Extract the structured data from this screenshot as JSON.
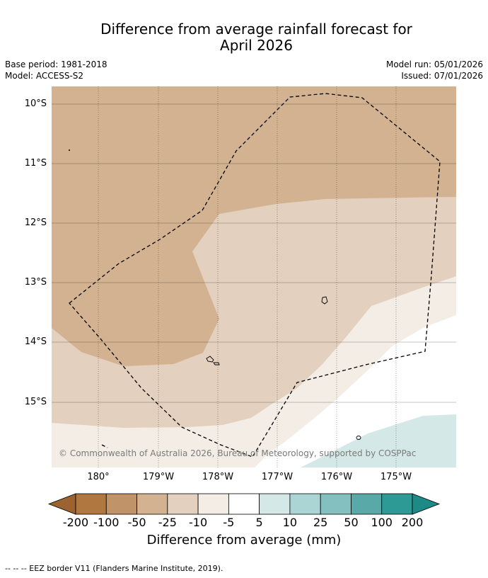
{
  "title_line1": "Difference from average rainfall forecast for",
  "title_line2": "April 2026",
  "base_period": "Base period: 1981-2018",
  "model": "Model: ACCESS-S2",
  "model_run": "Model run: 05/01/2026",
  "issued": "Issued: 07/01/2026",
  "copyright": "© Commonwealth of Australia 2026, Bureau of Meteorology, supported by COSPPac",
  "lat_ticks": [
    "10°S",
    "11°S",
    "12°S",
    "13°S",
    "14°S",
    "15°S"
  ],
  "lon_ticks": [
    "180°",
    "179°W",
    "178°W",
    "177°W",
    "176°W",
    "175°W"
  ],
  "colorbar": {
    "labels": [
      "-200",
      "-100",
      "-50",
      "-25",
      "-10",
      "-5",
      "5",
      "10",
      "25",
      "50",
      "100",
      "200"
    ],
    "colors": [
      "#9b6330",
      "#b07840",
      "#c19368",
      "#d3b291",
      "#e3d0be",
      "#f3ede6",
      "#ffffff",
      "#d4e8e8",
      "#abd4d4",
      "#85c0c0",
      "#5aa9a9",
      "#2e9a96",
      "#1d8a86"
    ],
    "title": "Difference from average (mm)"
  },
  "footnote": "--  --  -- EEZ border V11 (Flanders Marine Institute, 2019)."
}
